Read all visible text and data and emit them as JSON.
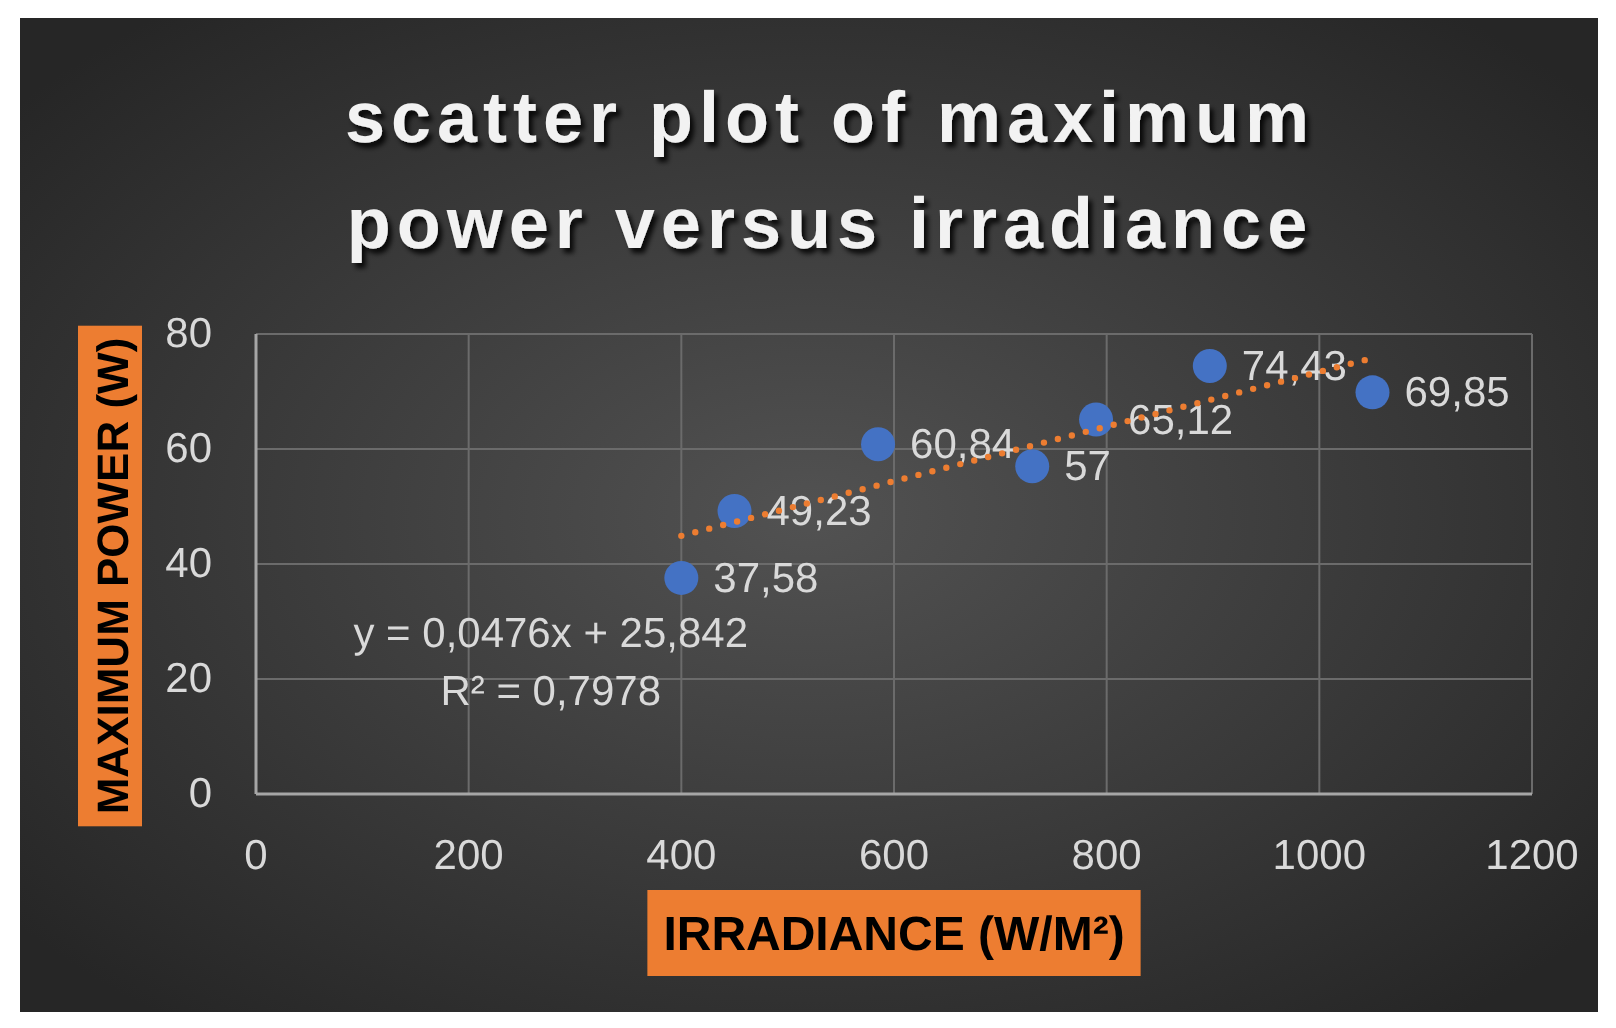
{
  "chart_data": {
    "type": "scatter",
    "title": "scatter plot of maximum power versus irradiance",
    "xlabel": "IRRADIANCE (W/M²)",
    "ylabel": "MAXIMUM POWER (W)",
    "series": [
      {
        "color": "#4472c4",
        "x": [
          400,
          450,
          585,
          730,
          790,
          897,
          1050
        ],
        "values": [
          37.58,
          49.23,
          60.84,
          57,
          65.12,
          74.43,
          69.85
        ],
        "value_labels": [
          "37,58",
          "49,23",
          "60,84",
          "57",
          "65,12",
          "74,43",
          "69,85"
        ]
      },
      {
        "type": "line",
        "color": "#ed7d31",
        "x": [
          400,
          1050
        ],
        "values": [
          44.9,
          75.8
        ],
        "line_style": "dotted",
        "marker": "none"
      }
    ],
    "marker": "circle",
    "xlim": [
      0,
      1200
    ],
    "xticks": [
      0,
      200,
      400,
      600,
      800,
      1000,
      1200
    ],
    "ylim": [
      0,
      80
    ],
    "yticks": [
      0,
      20,
      40,
      60,
      80
    ],
    "grid": true,
    "annotations": [
      "y = 0,0476x + 25,842",
      "R² = 0,7978"
    ]
  }
}
